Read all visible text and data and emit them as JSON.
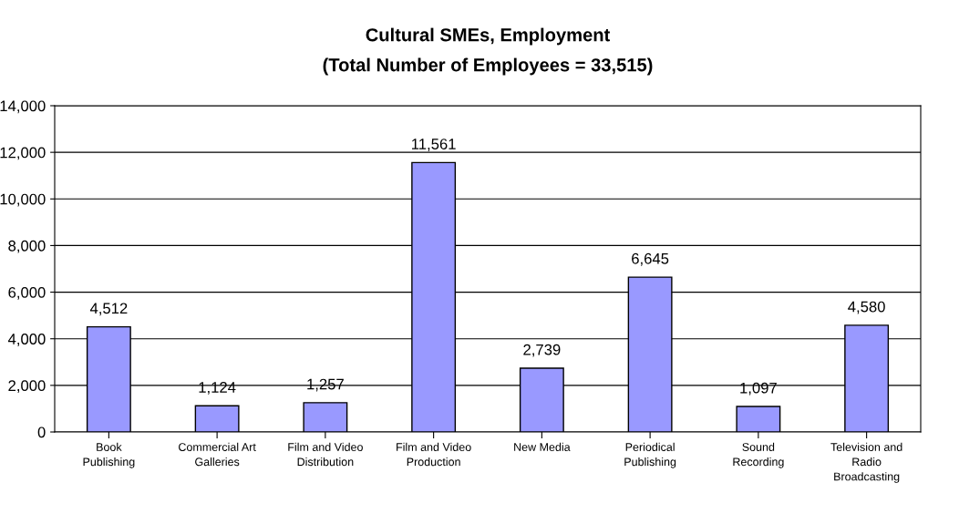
{
  "chart_data": {
    "type": "bar",
    "title": "Cultural SMEs, Employment",
    "subtitle": "(Total Number of Employees = 33,515)",
    "categories": [
      "Book\nPublishing",
      "Commercial Art\nGalleries",
      "Film and Video\nDistribution",
      "Film and Video\nProduction",
      "New Media",
      "Periodical\nPublishing",
      "Sound\nRecording",
      "Television and\nRadio\nBroadcasting"
    ],
    "values": [
      4512,
      1124,
      1257,
      11561,
      2739,
      6645,
      1097,
      4580
    ],
    "value_labels": [
      "4,512",
      "1,124",
      "1,257",
      "11,561",
      "2,739",
      "6,645",
      "1,097",
      "4,580"
    ],
    "color": "#9999ff",
    "ylim": [
      0,
      14000
    ],
    "yticks": [
      0,
      {
        "value": 2000,
        "label": "2,000"
      },
      {
        "value": 4000,
        "label": "4,000"
      },
      {
        "value": 6000,
        "label": "6,000"
      },
      {
        "value": 8000,
        "label": "8,000"
      },
      {
        "value": 10000,
        "label": "10,000"
      },
      {
        "value": 12000,
        "label": "12,000"
      },
      {
        "value": 14000,
        "label": "14,000"
      }
    ],
    "grid": "y",
    "legend": false
  }
}
